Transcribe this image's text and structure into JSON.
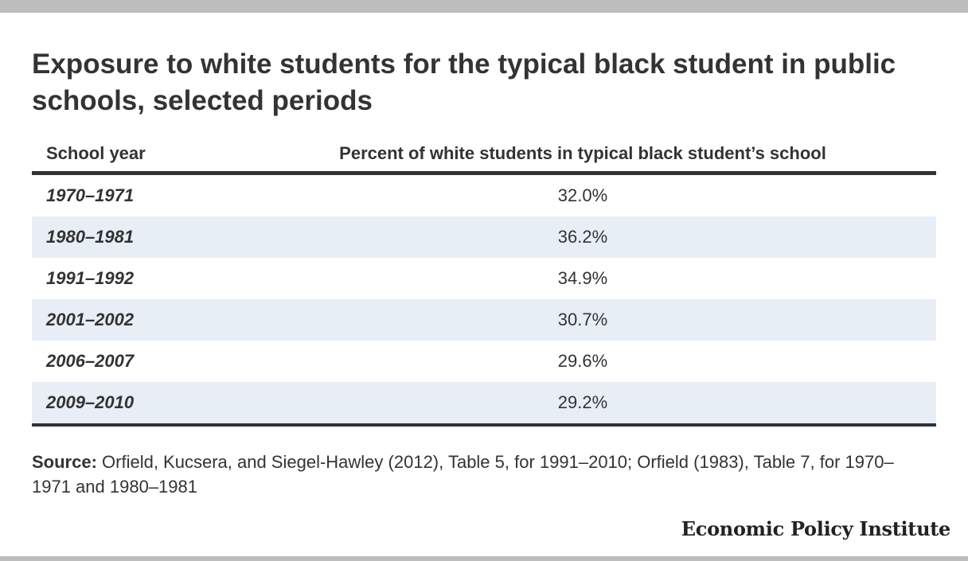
{
  "chart_data": {
    "type": "table",
    "title": "Exposure to white students for the typical black student in public schools, selected periods",
    "columns": [
      "School year",
      "Percent of white students in typical black student’s school"
    ],
    "rows": [
      {
        "year": "1970–1971",
        "value": "32.0%"
      },
      {
        "year": "1980–1981",
        "value": "36.2%"
      },
      {
        "year": "1991–1992",
        "value": "34.9%"
      },
      {
        "year": "2001–2002",
        "value": "30.7%"
      },
      {
        "year": "2006–2007",
        "value": "29.6%"
      },
      {
        "year": "2009–2010",
        "value": "29.2%"
      }
    ],
    "categories": [
      "1970–1971",
      "1980–1981",
      "1991–1992",
      "2001–2002",
      "2006–2007",
      "2009–2010"
    ],
    "values": [
      32.0,
      36.2,
      34.9,
      30.7,
      29.6,
      29.2
    ]
  },
  "source": {
    "label": "Source:",
    "text": " Orfield, Kucsera, and Siegel-Hawley (2012), Table 5, for  1991–2010; Orfield (1983), Table 7, for 1970–1971 and 1980–1981"
  },
  "branding": {
    "logo_text": "Economic Policy Institute"
  },
  "colors": {
    "text": "#333333",
    "row_alt": "#e8eef6",
    "frame_bar": "#bdbdbd"
  }
}
